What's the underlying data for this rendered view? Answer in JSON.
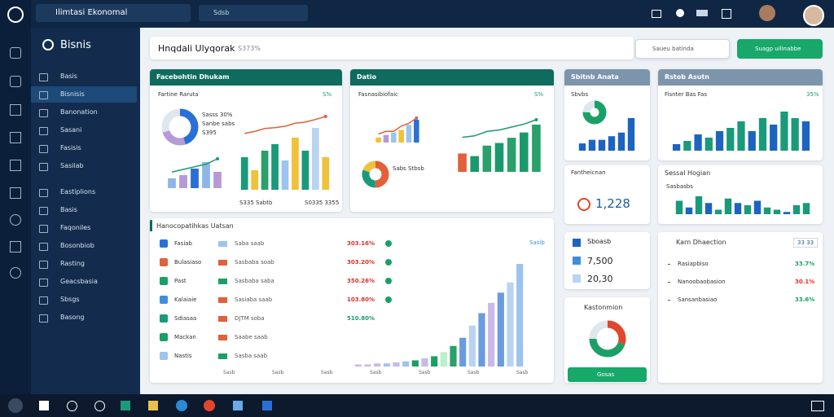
{
  "topbar": {
    "app_title": "Ilimtasi Ekonomal",
    "search": "Sdsb"
  },
  "sidebar": {
    "title": "Bisnis",
    "items": [
      "Basis",
      "Bisnisis",
      "Banonation",
      "Sasani",
      "Fasisis",
      "Sasilab",
      "Eastiplions",
      "Basis",
      "Faqoniles",
      "Bosonbiob",
      "Rasting",
      "Geacsbasia",
      "Sbsgs",
      "Basong"
    ]
  },
  "header": {
    "title": "Hnqdali Ulyqorak",
    "subtitle": "S373%",
    "search_button": "Saueu batinda",
    "action_button": "Suagp uilinabbe"
  },
  "card1": {
    "header": "Facebohtin Dhukam",
    "title": "Fartine Raruta",
    "tag": "S%",
    "legend": [
      "Sasss 30%",
      "Sanbe sabs",
      "S395"
    ],
    "footer": [
      "S335 Sabtb",
      "S0335 3355"
    ],
    "donut": {
      "type": "donut",
      "values": [
        45,
        25,
        30
      ],
      "colors": [
        "#2a6fd6",
        "#b59ad8",
        "#dfe6ee"
      ]
    },
    "mini": {
      "type": "bar",
      "values": [
        3,
        4,
        6,
        8,
        5
      ],
      "colors": [
        "#8fb6e8",
        "#b59ad8",
        "#2a6fd6",
        "#8fb6e8",
        "#b59ad8"
      ]
    },
    "mini_line": {
      "type": "line",
      "values": [
        3,
        4,
        5,
        6,
        8
      ],
      "color": "#1a9a6c"
    },
    "bars": {
      "type": "bar",
      "values": [
        50,
        30,
        60,
        70,
        45,
        80,
        60,
        95,
        50
      ],
      "colors": [
        "#1a9a7a",
        "#f0c23a",
        "#2aa06a",
        "#1a9a7a",
        "#9cc4ee",
        "#f0c23a",
        "#1a9a7a",
        "#b9d3f2",
        "#f0c23a"
      ]
    },
    "bars_line": {
      "type": "line",
      "values": [
        55,
        60,
        68,
        70,
        74,
        82,
        85,
        92,
        100
      ],
      "color": "#e2603a"
    }
  },
  "card2": {
    "header": "Datio",
    "title": "Fasnasibiofaic",
    "tag": "S%",
    "pie_label": "Sabs Stbsb",
    "line": {
      "type": "line",
      "values": [
        2,
        3,
        3,
        5,
        6,
        8
      ],
      "color": "#e2603a"
    },
    "minibars": {
      "type": "bar",
      "values": [
        2,
        3,
        4,
        5,
        7,
        9
      ],
      "colors": [
        "#f0c23a",
        "#b59ad8",
        "#9cc4ee",
        "#f0c23a",
        "#9cc4ee",
        "#2a6fd6"
      ]
    },
    "pie": {
      "type": "donut",
      "values": [
        50,
        30,
        20
      ],
      "colors": [
        "#e2603a",
        "#1a9a7a",
        "#f0c23a"
      ]
    },
    "bars": {
      "type": "bar",
      "values": [
        35,
        30,
        50,
        55,
        65,
        75,
        90
      ],
      "colors": [
        "#e2603a",
        "#1a9a6c",
        "#2aa06a",
        "#1a9a6c",
        "#2aa06a",
        "#1a9a6c",
        "#2aa06a"
      ]
    },
    "bars_line": {
      "type": "line",
      "values": [
        40,
        45,
        60,
        65,
        75,
        85,
        100
      ],
      "color": "#1a9a6c"
    }
  },
  "card3": {
    "header": "Sbitnb Anata",
    "label": "Sbvbs",
    "gauge": {
      "type": "donut",
      "values": [
        75,
        25
      ],
      "colors": [
        "#1aa066",
        "#dfe6ee"
      ]
    },
    "bars": {
      "type": "bar",
      "values": [
        2,
        3,
        3,
        4,
        5,
        9
      ],
      "colors": [
        "#1c64c0",
        "#1c64c0",
        "#1c64c0",
        "#1c64c0",
        "#1c64c0",
        "#1c64c0"
      ]
    }
  },
  "card4": {
    "header": "Rstob Asutn",
    "label": "Fisnter Bas Fas",
    "tag": "35%",
    "bars": {
      "type": "bar",
      "values": [
        2,
        3,
        5,
        4,
        6,
        7,
        9,
        6,
        10,
        8,
        12,
        10,
        9
      ],
      "colors": [
        "#1c64c0",
        "#1a9a7a",
        "#1c64c0",
        "#1a9a7a",
        "#1c64c0",
        "#1a9a7a",
        "#1a9a7a",
        "#1c64c0",
        "#1a9a7a",
        "#1c64c0",
        "#1a9a7a",
        "#1a9a7a",
        "#1c64c0"
      ]
    }
  },
  "kpi": {
    "title": "Fantheicnan",
    "value": "1,228"
  },
  "card5": {
    "title": "Sessal Hogian",
    "label": "Sasbasbs",
    "bars": {
      "type": "bar",
      "values": [
        6,
        3,
        8,
        5,
        2,
        7,
        5,
        4,
        6,
        3,
        2,
        1,
        4,
        5
      ],
      "colors": [
        "#1a9a7a",
        "#1c64c0",
        "#1a9a7a",
        "#1c64c0",
        "#1a9a7a",
        "#1a9a7a",
        "#1c64c0",
        "#1a9a7a",
        "#1c64c0",
        "#1a9a7a",
        "#1a9a7a",
        "#1c64c0",
        "#1a9a7a",
        "#1a9a7a"
      ]
    }
  },
  "legendcard": {
    "items": [
      {
        "text": "Sboasb",
        "color": "#1c64c0"
      },
      {
        "text": "7,500",
        "color": "#3d8ee0"
      },
      {
        "text": "20,30",
        "color": "#b9d3f2"
      }
    ]
  },
  "listcard": {
    "title": "Karn Dhaection",
    "badge": "33 33",
    "items": [
      {
        "name": "Rasiapbiso",
        "value": "33.7%",
        "color": "#1aa066"
      },
      {
        "name": "Nanoobaobasion",
        "value": "30.1%",
        "color": "#d9312b"
      },
      {
        "name": "Sansanbasiao",
        "value": "33.6%",
        "color": "#1aa066"
      }
    ]
  },
  "donutcard": {
    "title": "Kastonmion",
    "button": "Gosas",
    "donut": {
      "type": "donut",
      "values": [
        30,
        45,
        25
      ],
      "colors": [
        "#e2452b",
        "#1aa066",
        "#dfe6ee"
      ]
    }
  },
  "table": {
    "title": "Hanocopatihkas Uatsan",
    "tag": "Sasib",
    "rows": [
      {
        "name": "Fasiab",
        "detail": "Saba saab",
        "change": "303.16%",
        "icon_color": "#2a6fd6",
        "swatch_color": "#9cc4ee",
        "change_color": "#d9312b"
      },
      {
        "name": "Bulasiaso",
        "detail": "Sasbaba soab",
        "change": "303.20%",
        "icon_color": "#e2603a",
        "swatch_color": "#e2603a",
        "change_color": "#d9312b"
      },
      {
        "name": "Past",
        "detail": "Sasbaba saba",
        "change": "350.26%",
        "icon_color": "#1aa066",
        "swatch_color": "#1aa066",
        "change_color": "#d9312b"
      },
      {
        "name": "Kalaiaie",
        "detail": "Sasiaba saab",
        "change": "103.80%",
        "icon_color": "#3d8ee0",
        "swatch_color": "#e2603a",
        "change_color": "#d9312b"
      },
      {
        "name": "Sdiasaa",
        "detail": "DJTM soba",
        "change": "510.80%",
        "icon_color": "#1a9a7a",
        "swatch_color": "#e2603a",
        "change_color": "#1aa066"
      },
      {
        "name": "Mackan",
        "detail": "Saabe saab",
        "change": "",
        "icon_color": "#1aa066",
        "swatch_color": "#e2603a",
        "change_color": "#d9312b"
      },
      {
        "name": "Nastis",
        "detail": "Sasba saab",
        "change": "",
        "icon_color": "#9cc4ee",
        "swatch_color": "#1aa066",
        "change_color": "#d9312b"
      }
    ],
    "x_labels": [
      "Sasb",
      "Sasb",
      "Sasb",
      "Sasb",
      "Sasb",
      "Sasb",
      "Sasb"
    ],
    "growth": {
      "type": "bar",
      "values": [
        2,
        2,
        3,
        3,
        4,
        5,
        6,
        8,
        10,
        14,
        20,
        28,
        40,
        52,
        62,
        72,
        82,
        100
      ],
      "colors": [
        "#c9b8e8",
        "#c9b8e8",
        "#c9b8e8",
        "#9cc4ee",
        "#c9b8e8",
        "#9cc4ee",
        "#1aa066",
        "#c9b8e8",
        "#1aa066",
        "#b9f0cf",
        "#2aa06a",
        "#6a9be0",
        "#b9d3f2",
        "#6a9be0",
        "#c9b8e8",
        "#6a9be0",
        "#b9d3f2",
        "#9cc4ee"
      ]
    }
  }
}
